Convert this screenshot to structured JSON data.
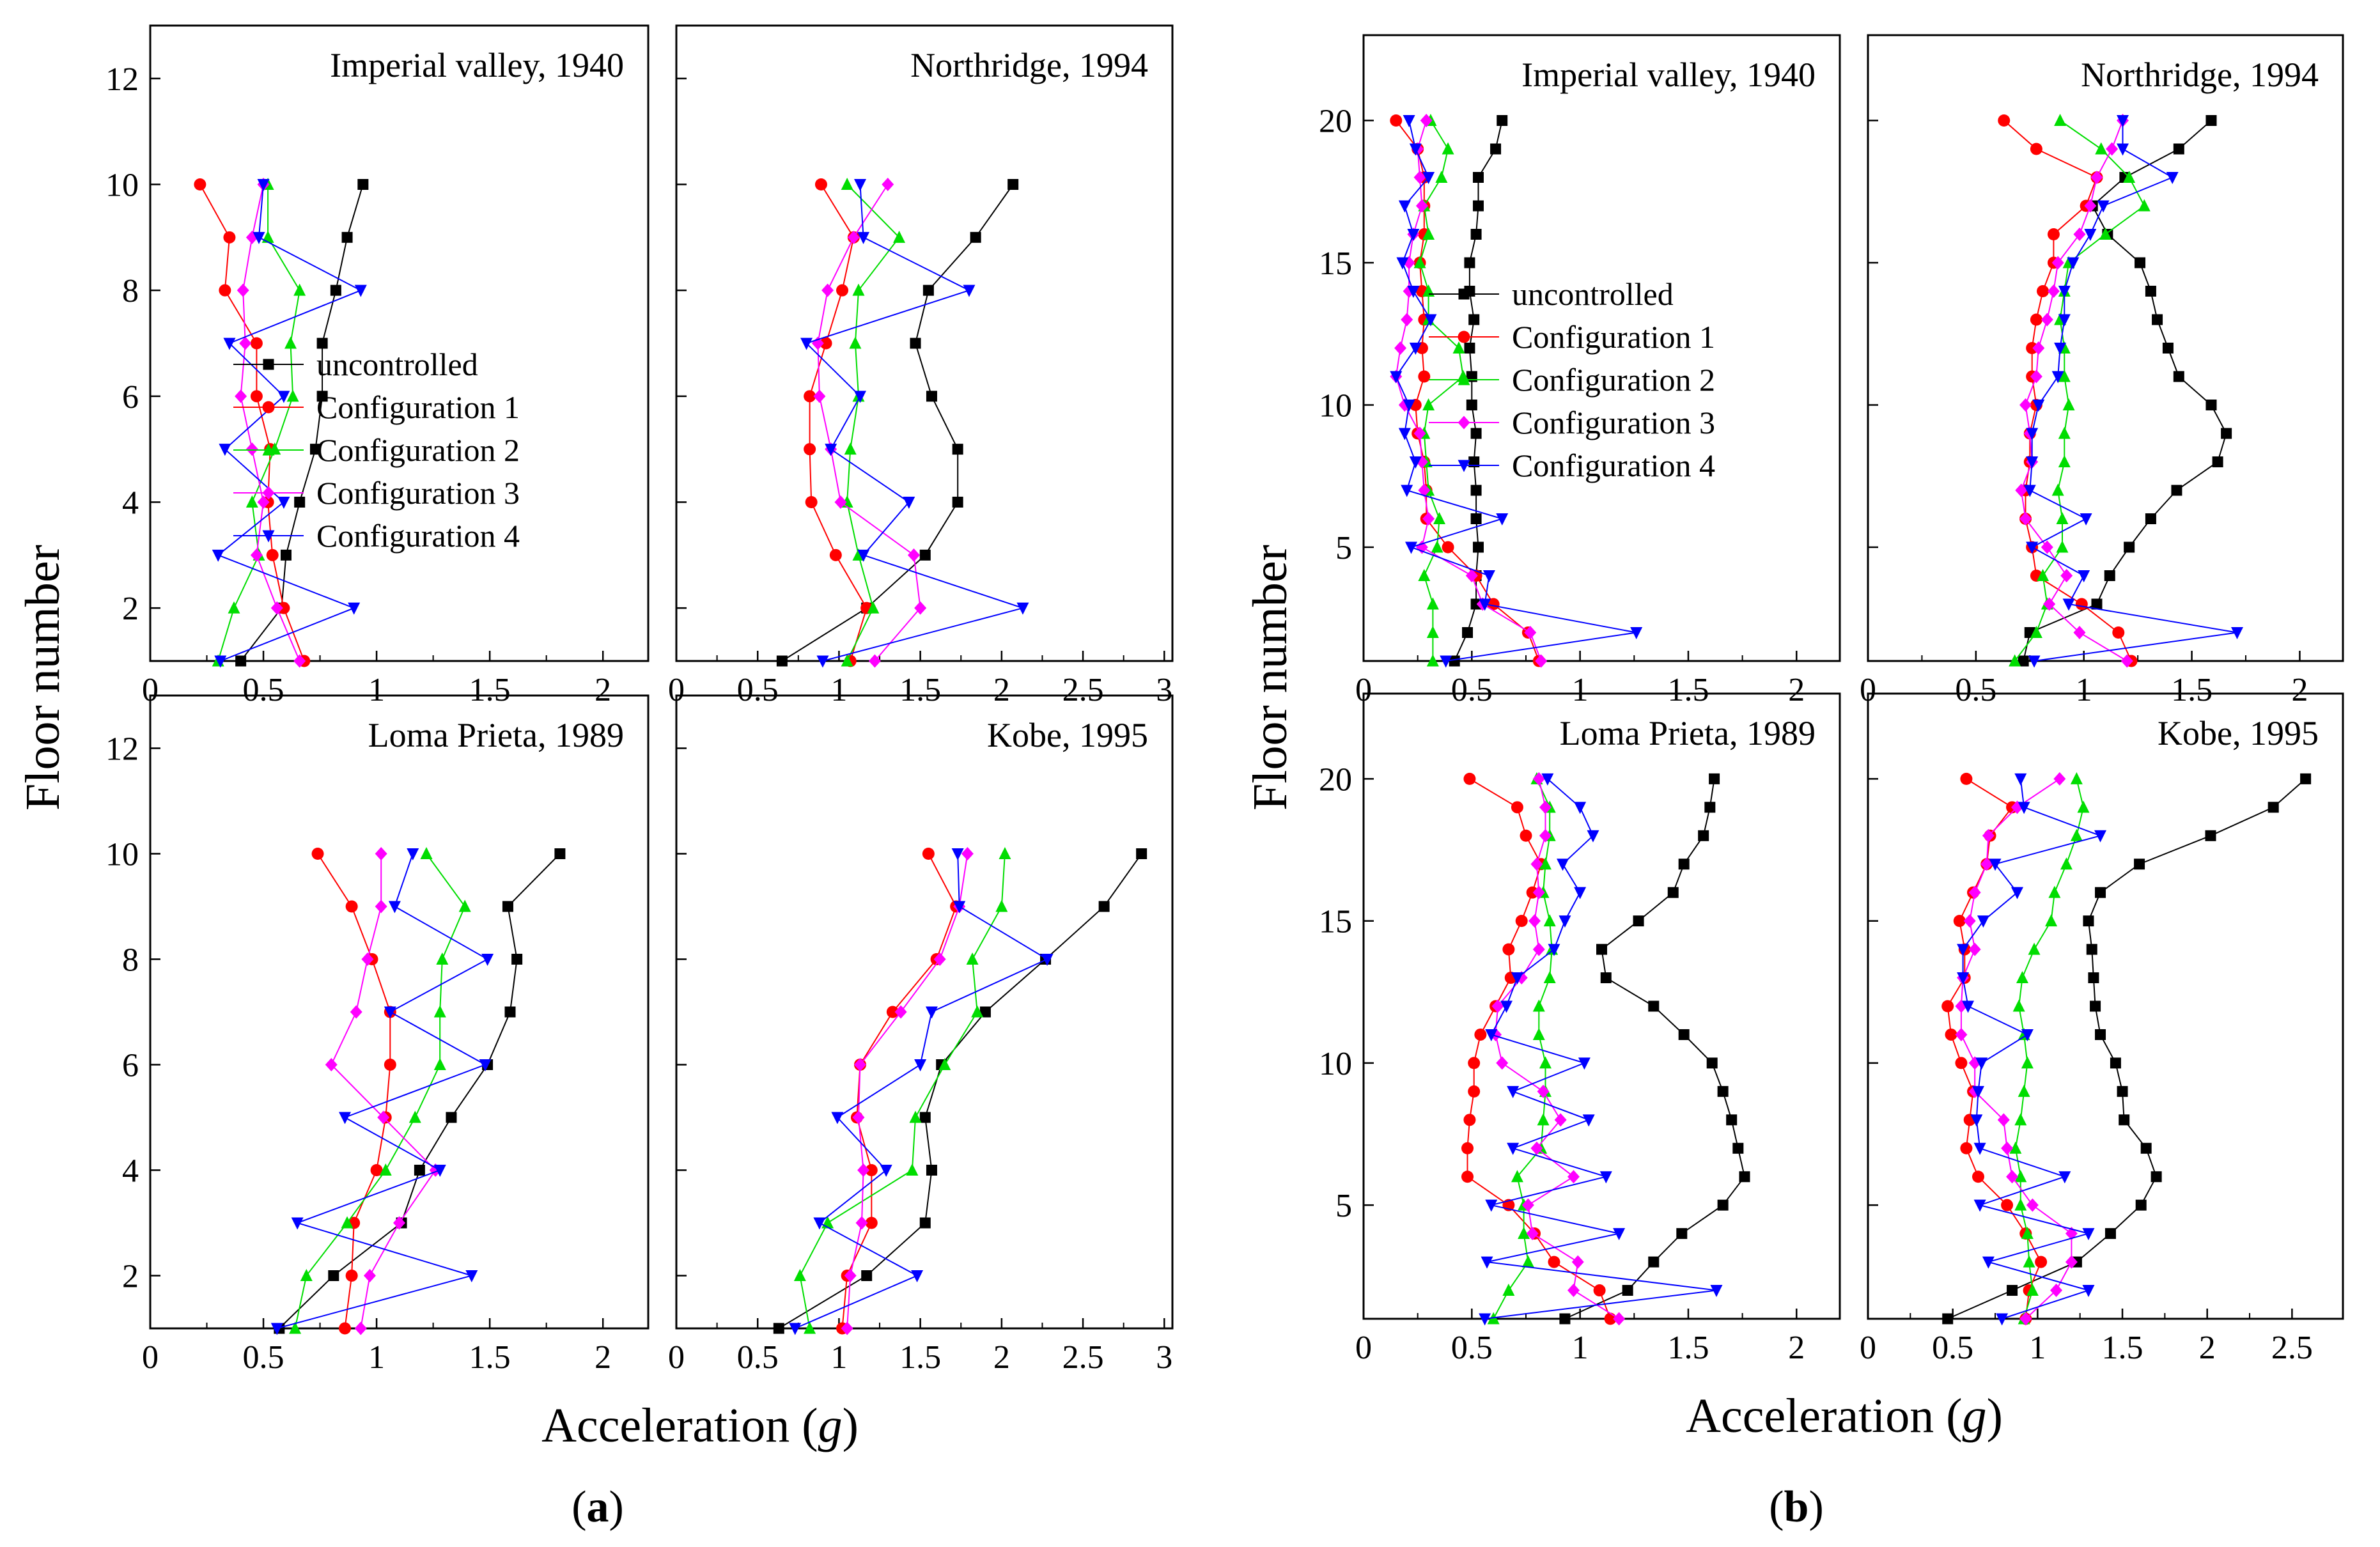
{
  "figure": {
    "xlabel": "Acceleration",
    "xlabel_unit": "g",
    "ylabel": "Floor number",
    "sublabels": [
      "a",
      "b"
    ]
  },
  "series_colors": {
    "uncontrolled": "#000000",
    "Configuration 1": "#ff0000",
    "Configuration 2": "#00dd00",
    "Configuration 3": "#ff00ff",
    "Configuration 4": "#0000ff"
  },
  "series_markers": {
    "uncontrolled": "square",
    "Configuration 1": "circle",
    "Configuration 2": "triangle-up",
    "Configuration 3": "diamond",
    "Configuration 4": "triangle-down"
  },
  "chart_data": [
    {
      "type": "line",
      "group": "a",
      "title": "Imperial valley, 1940",
      "xlim": [
        0,
        2.2
      ],
      "ylim": [
        1,
        13
      ],
      "xticks": [
        "0",
        "0.5",
        "1",
        "1.5",
        "2"
      ],
      "yticks": [
        "2",
        "4",
        "6",
        "8",
        "10",
        "12"
      ],
      "y": [
        1,
        2,
        3,
        4,
        5,
        6,
        7,
        8,
        9,
        10
      ],
      "legend": true,
      "series": [
        {
          "name": "uncontrolled",
          "values": [
            0.4,
            0.58,
            0.6,
            0.66,
            0.73,
            0.76,
            0.76,
            0.82,
            0.87,
            0.94
          ]
        },
        {
          "name": "Configuration 1",
          "values": [
            0.68,
            0.59,
            0.54,
            0.52,
            0.53,
            0.47,
            0.47,
            0.33,
            0.35,
            0.22
          ]
        },
        {
          "name": "Configuration 2",
          "values": [
            0.3,
            0.37,
            0.48,
            0.45,
            0.55,
            0.63,
            0.62,
            0.66,
            0.52,
            0.52
          ]
        },
        {
          "name": "Configuration 3",
          "values": [
            0.66,
            0.56,
            0.47,
            0.5,
            0.45,
            0.4,
            0.42,
            0.41,
            0.45,
            0.5
          ]
        },
        {
          "name": "Configuration 4",
          "values": [
            0.31,
            0.9,
            0.3,
            0.59,
            0.33,
            0.59,
            0.35,
            0.93,
            0.48,
            0.5
          ]
        }
      ]
    },
    {
      "type": "line",
      "group": "a",
      "title": "Northridge, 1994",
      "xlim": [
        0,
        3.05
      ],
      "ylim": [
        1,
        13
      ],
      "xticks": [
        "0",
        "0.5",
        "1",
        "1.5",
        "2",
        "2.5",
        "3"
      ],
      "yticks": [],
      "y": [
        1,
        2,
        3,
        4,
        5,
        6,
        7,
        8,
        9,
        10
      ],
      "legend": false,
      "series": [
        {
          "name": "uncontrolled",
          "values": [
            0.65,
            1.17,
            1.53,
            1.73,
            1.73,
            1.57,
            1.47,
            1.55,
            1.84,
            2.07
          ]
        },
        {
          "name": "Configuration 1",
          "values": [
            1.07,
            1.17,
            0.98,
            0.83,
            0.82,
            0.82,
            0.92,
            1.02,
            1.09,
            0.89
          ]
        },
        {
          "name": "Configuration 2",
          "values": [
            1.05,
            1.21,
            1.12,
            1.05,
            1.07,
            1.12,
            1.1,
            1.12,
            1.37,
            1.05
          ]
        },
        {
          "name": "Configuration 3",
          "values": [
            1.22,
            1.5,
            1.46,
            1.01,
            0.95,
            0.88,
            0.87,
            0.93,
            1.09,
            1.3
          ]
        },
        {
          "name": "Configuration 4",
          "values": [
            0.9,
            2.13,
            1.15,
            1.43,
            0.95,
            1.13,
            0.8,
            1.8,
            1.15,
            1.13
          ]
        }
      ]
    },
    {
      "type": "line",
      "group": "a",
      "title": "Loma Prieta, 1989",
      "xlim": [
        0,
        2.2
      ],
      "ylim": [
        1,
        13
      ],
      "xticks": [
        "0",
        "0.5",
        "1",
        "1.5",
        "2"
      ],
      "yticks": [
        "2",
        "4",
        "6",
        "8",
        "10",
        "12"
      ],
      "y": [
        1,
        2,
        3,
        4,
        5,
        6,
        7,
        8,
        9,
        10
      ],
      "legend": false,
      "series": [
        {
          "name": "uncontrolled",
          "values": [
            0.57,
            0.81,
            1.11,
            1.19,
            1.33,
            1.49,
            1.59,
            1.62,
            1.58,
            1.81
          ]
        },
        {
          "name": "Configuration 1",
          "values": [
            0.86,
            0.89,
            0.9,
            1.0,
            1.04,
            1.06,
            1.06,
            0.98,
            0.89,
            0.74
          ]
        },
        {
          "name": "Configuration 2",
          "values": [
            0.64,
            0.69,
            0.87,
            1.04,
            1.17,
            1.28,
            1.28,
            1.29,
            1.39,
            1.22
          ]
        },
        {
          "name": "Configuration 3",
          "values": [
            0.93,
            0.97,
            1.1,
            1.26,
            1.03,
            0.8,
            0.91,
            0.96,
            1.02,
            1.02
          ]
        },
        {
          "name": "Configuration 4",
          "values": [
            0.56,
            1.42,
            0.65,
            1.28,
            0.86,
            1.48,
            1.06,
            1.49,
            1.08,
            1.16
          ]
        }
      ]
    },
    {
      "type": "line",
      "group": "a",
      "title": "Kobe, 1995",
      "xlim": [
        0,
        3.05
      ],
      "ylim": [
        1,
        13
      ],
      "xticks": [
        "0",
        "0.5",
        "1",
        "1.5",
        "2",
        "2.5",
        "3"
      ],
      "yticks": [],
      "y": [
        1,
        2,
        3,
        4,
        5,
        6,
        7,
        8,
        9,
        10
      ],
      "legend": false,
      "series": [
        {
          "name": "uncontrolled",
          "values": [
            0.63,
            1.17,
            1.53,
            1.57,
            1.53,
            1.63,
            1.9,
            2.27,
            2.63,
            2.86
          ]
        },
        {
          "name": "Configuration 1",
          "values": [
            1.02,
            1.05,
            1.2,
            1.2,
            1.11,
            1.13,
            1.33,
            1.6,
            1.72,
            1.55
          ]
        },
        {
          "name": "Configuration 2",
          "values": [
            0.82,
            0.76,
            0.93,
            1.45,
            1.47,
            1.65,
            1.85,
            1.82,
            2.0,
            2.02
          ]
        },
        {
          "name": "Configuration 3",
          "values": [
            1.05,
            1.07,
            1.14,
            1.15,
            1.12,
            1.13,
            1.38,
            1.62,
            1.74,
            1.79
          ]
        },
        {
          "name": "Configuration 4",
          "values": [
            0.73,
            1.48,
            0.88,
            1.29,
            0.99,
            1.5,
            1.57,
            2.28,
            1.74,
            1.73
          ]
        }
      ]
    },
    {
      "type": "line",
      "group": "b",
      "title": "Imperial valley, 1940",
      "xlim": [
        0,
        2.2
      ],
      "ylim": [
        1,
        23
      ],
      "xticks": [
        "0",
        "0.5",
        "1",
        "1.5",
        "2"
      ],
      "yticks": [
        "5",
        "10",
        "15",
        "20"
      ],
      "y": [
        1,
        2,
        3,
        4,
        5,
        6,
        7,
        8,
        9,
        10,
        11,
        12,
        13,
        14,
        15,
        16,
        17,
        18,
        19,
        20
      ],
      "legend": true,
      "series": [
        {
          "name": "uncontrolled",
          "values": [
            0.42,
            0.48,
            0.52,
            0.52,
            0.53,
            0.52,
            0.52,
            0.51,
            0.52,
            0.5,
            0.5,
            0.49,
            0.51,
            0.49,
            0.49,
            0.52,
            0.53,
            0.53,
            0.61,
            0.64
          ]
        },
        {
          "name": "Configuration 1",
          "values": [
            0.81,
            0.76,
            0.6,
            0.52,
            0.39,
            0.29,
            0.29,
            0.28,
            0.25,
            0.24,
            0.28,
            0.27,
            0.28,
            0.27,
            0.26,
            0.28,
            0.28,
            0.28,
            0.25,
            0.15
          ]
        },
        {
          "name": "Configuration 2",
          "values": [
            0.32,
            0.32,
            0.32,
            0.28,
            0.34,
            0.35,
            0.3,
            0.29,
            0.28,
            0.3,
            0.46,
            0.44,
            0.3,
            0.3,
            0.26,
            0.3,
            0.28,
            0.36,
            0.39,
            0.31
          ]
        },
        {
          "name": "Configuration 3",
          "values": [
            0.82,
            0.77,
            0.55,
            0.5,
            0.27,
            0.3,
            0.28,
            0.27,
            0.26,
            0.19,
            0.15,
            0.17,
            0.2,
            0.21,
            0.21,
            0.23,
            0.27,
            0.26,
            0.25,
            0.29
          ]
        },
        {
          "name": "Configuration 4",
          "values": [
            0.38,
            1.26,
            0.56,
            0.58,
            0.22,
            0.64,
            0.2,
            0.24,
            0.19,
            0.21,
            0.15,
            0.24,
            0.31,
            0.23,
            0.18,
            0.23,
            0.19,
            0.3,
            0.24,
            0.21
          ]
        }
      ]
    },
    {
      "type": "line",
      "group": "b",
      "title": "Northridge, 1994",
      "xlim": [
        0,
        2.2
      ],
      "ylim": [
        1,
        23
      ],
      "xticks": [
        "0",
        "0.5",
        "1",
        "1.5",
        "2"
      ],
      "yticks": [],
      "y": [
        1,
        2,
        3,
        4,
        5,
        6,
        7,
        8,
        9,
        10,
        11,
        12,
        13,
        14,
        15,
        16,
        17,
        18,
        19,
        20
      ],
      "legend": false,
      "series": [
        {
          "name": "uncontrolled",
          "values": [
            0.72,
            0.75,
            1.06,
            1.12,
            1.21,
            1.31,
            1.43,
            1.62,
            1.66,
            1.59,
            1.44,
            1.39,
            1.34,
            1.31,
            1.26,
            1.11,
            1.04,
            1.19,
            1.44,
            1.59
          ]
        },
        {
          "name": "Configuration 1",
          "values": [
            1.22,
            1.16,
            0.99,
            0.78,
            0.76,
            0.73,
            0.73,
            0.75,
            0.75,
            0.78,
            0.76,
            0.76,
            0.78,
            0.81,
            0.86,
            0.86,
            1.01,
            1.06,
            0.78,
            0.63
          ]
        },
        {
          "name": "Configuration 2",
          "values": [
            0.68,
            0.78,
            0.83,
            0.81,
            0.9,
            0.9,
            0.88,
            0.91,
            0.91,
            0.93,
            0.91,
            0.91,
            0.89,
            0.91,
            0.93,
            1.1,
            1.28,
            1.21,
            1.08,
            0.89
          ]
        },
        {
          "name": "Configuration 3",
          "values": [
            1.2,
            0.98,
            0.84,
            0.92,
            0.83,
            0.73,
            0.71,
            0.76,
            0.75,
            0.73,
            0.78,
            0.79,
            0.83,
            0.86,
            0.88,
            0.98,
            1.03,
            1.06,
            1.13,
            1.18
          ]
        },
        {
          "name": "Configuration 4",
          "values": [
            0.77,
            1.71,
            0.93,
            1.0,
            0.76,
            1.01,
            0.75,
            0.76,
            0.76,
            0.79,
            0.88,
            0.89,
            0.91,
            0.91,
            0.95,
            1.03,
            1.09,
            1.41,
            1.18,
            1.18
          ]
        }
      ]
    },
    {
      "type": "line",
      "group": "b",
      "title": "Loma Prieta, 1989",
      "xlim": [
        0,
        2.2
      ],
      "ylim": [
        1,
        23
      ],
      "xticks": [
        "0",
        "0.5",
        "1",
        "1.5",
        "2"
      ],
      "yticks": [
        "5",
        "10",
        "15",
        "20"
      ],
      "y": [
        1,
        2,
        3,
        4,
        5,
        6,
        7,
        8,
        9,
        10,
        11,
        12,
        13,
        14,
        15,
        16,
        17,
        18,
        19,
        20
      ],
      "legend": false,
      "series": [
        {
          "name": "uncontrolled",
          "values": [
            0.93,
            1.22,
            1.34,
            1.47,
            1.66,
            1.76,
            1.73,
            1.7,
            1.66,
            1.61,
            1.48,
            1.34,
            1.12,
            1.1,
            1.27,
            1.43,
            1.48,
            1.57,
            1.6,
            1.62
          ]
        },
        {
          "name": "Configuration 1",
          "values": [
            1.14,
            1.09,
            0.88,
            0.79,
            0.67,
            0.48,
            0.48,
            0.49,
            0.51,
            0.51,
            0.54,
            0.61,
            0.68,
            0.67,
            0.73,
            0.78,
            0.82,
            0.75,
            0.71,
            0.49
          ]
        },
        {
          "name": "Configuration 2",
          "values": [
            0.6,
            0.67,
            0.76,
            0.74,
            0.74,
            0.71,
            0.82,
            0.83,
            0.84,
            0.84,
            0.81,
            0.81,
            0.86,
            0.87,
            0.86,
            0.83,
            0.84,
            0.86,
            0.86,
            0.8
          ]
        },
        {
          "name": "Configuration 3",
          "values": [
            1.18,
            0.97,
            0.99,
            0.78,
            0.76,
            0.97,
            0.8,
            0.91,
            0.83,
            0.64,
            0.61,
            0.62,
            0.73,
            0.81,
            0.79,
            0.81,
            0.8,
            0.84,
            0.84,
            0.81
          ]
        },
        {
          "name": "Configuration 4",
          "values": [
            0.56,
            1.63,
            0.57,
            1.18,
            0.59,
            1.12,
            0.69,
            1.04,
            0.69,
            1.02,
            0.59,
            0.66,
            0.71,
            0.88,
            0.93,
            1.0,
            0.92,
            1.06,
            1.0,
            0.85
          ]
        }
      ]
    },
    {
      "type": "line",
      "group": "b",
      "title": "Kobe, 1995",
      "xlim": [
        0,
        2.8
      ],
      "ylim": [
        1,
        23
      ],
      "xticks": [
        "0",
        "0.5",
        "1",
        "1.5",
        "2",
        "2.5"
      ],
      "yticks": [],
      "y": [
        1,
        2,
        3,
        4,
        5,
        6,
        7,
        8,
        9,
        10,
        11,
        12,
        13,
        14,
        15,
        16,
        17,
        18,
        19,
        20
      ],
      "legend": false,
      "series": [
        {
          "name": "uncontrolled",
          "values": [
            0.47,
            0.85,
            1.23,
            1.43,
            1.61,
            1.7,
            1.64,
            1.51,
            1.5,
            1.46,
            1.37,
            1.34,
            1.33,
            1.32,
            1.3,
            1.37,
            1.6,
            2.02,
            2.39,
            2.58
          ]
        },
        {
          "name": "Configuration 1",
          "values": [
            0.93,
            0.95,
            1.02,
            0.93,
            0.82,
            0.65,
            0.58,
            0.6,
            0.62,
            0.55,
            0.49,
            0.47,
            0.57,
            0.57,
            0.54,
            0.62,
            0.7,
            0.72,
            0.85,
            0.58
          ]
        },
        {
          "name": "Configuration 2",
          "values": [
            0.92,
            0.97,
            0.95,
            0.94,
            0.9,
            0.9,
            0.87,
            0.9,
            0.92,
            0.94,
            0.92,
            0.89,
            0.91,
            0.98,
            1.08,
            1.1,
            1.17,
            1.23,
            1.27,
            1.23
          ]
        },
        {
          "name": "Configuration 3",
          "values": [
            0.93,
            1.11,
            1.2,
            1.2,
            0.97,
            0.85,
            0.82,
            0.8,
            0.63,
            0.63,
            0.55,
            0.55,
            0.56,
            0.63,
            0.6,
            0.63,
            0.7,
            0.71,
            0.88,
            1.13
          ]
        },
        {
          "name": "Configuration 4",
          "values": [
            0.79,
            1.3,
            0.71,
            1.3,
            0.66,
            1.16,
            0.66,
            0.64,
            0.65,
            0.67,
            0.94,
            0.59,
            0.56,
            0.56,
            0.68,
            0.88,
            0.75,
            1.37,
            0.92,
            0.9
          ]
        }
      ]
    }
  ]
}
